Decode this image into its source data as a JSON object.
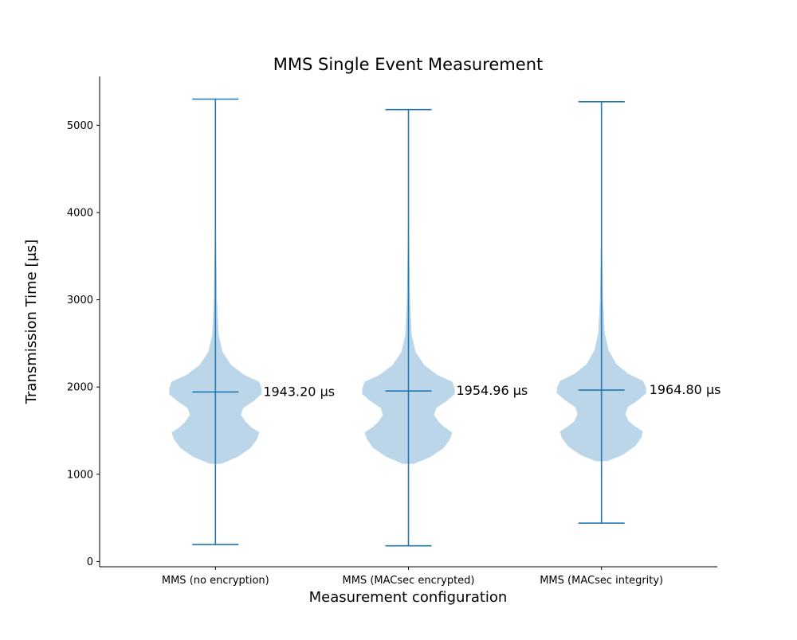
{
  "chart_data": {
    "type": "violin",
    "title": "MMS Single Event Measurement",
    "xlabel": "Measurement configuration",
    "ylabel": "Transmission Time [μs]",
    "ylim": [
      -60,
      5560
    ],
    "yticks": [
      0,
      1000,
      2000,
      3000,
      4000,
      5000
    ],
    "grid": false,
    "legend": "none",
    "color": "#1f77b4",
    "fill_color": "#1f77b4",
    "fill_opacity": 0.3,
    "categories": [
      "MMS (no encryption)",
      "MMS (MACsec encrypted)",
      "MMS (MACsec integrity)"
    ],
    "series": [
      {
        "min": 195,
        "max": 5300,
        "mean": 1943.2,
        "mean_label": "1943.20 μs",
        "density": [
          [
            1120,
            7
          ],
          [
            1200,
            28
          ],
          [
            1300,
            44
          ],
          [
            1400,
            52
          ],
          [
            1480,
            55
          ],
          [
            1540,
            45
          ],
          [
            1600,
            38
          ],
          [
            1680,
            32
          ],
          [
            1760,
            35
          ],
          [
            1840,
            48
          ],
          [
            1920,
            58
          ],
          [
            1980,
            58
          ],
          [
            2060,
            55
          ],
          [
            2140,
            36
          ],
          [
            2250,
            20
          ],
          [
            2400,
            9
          ],
          [
            2600,
            4
          ],
          [
            3000,
            2
          ],
          [
            3600,
            1
          ],
          [
            4300,
            0
          ]
        ]
      },
      {
        "min": 180,
        "max": 5180,
        "mean": 1954.96,
        "mean_label": "1954.96 μs",
        "density": [
          [
            1120,
            7
          ],
          [
            1200,
            28
          ],
          [
            1300,
            44
          ],
          [
            1400,
            52
          ],
          [
            1480,
            55
          ],
          [
            1540,
            45
          ],
          [
            1600,
            38
          ],
          [
            1680,
            32
          ],
          [
            1760,
            35
          ],
          [
            1840,
            48
          ],
          [
            1920,
            58
          ],
          [
            1980,
            58
          ],
          [
            2060,
            55
          ],
          [
            2140,
            36
          ],
          [
            2250,
            20
          ],
          [
            2400,
            9
          ],
          [
            2600,
            4
          ],
          [
            3000,
            2
          ],
          [
            3600,
            1
          ],
          [
            4300,
            0
          ]
        ]
      },
      {
        "min": 440,
        "max": 5270,
        "mean": 1964.8,
        "mean_label": "1964.80 μs",
        "density": [
          [
            1150,
            7
          ],
          [
            1220,
            26
          ],
          [
            1320,
            42
          ],
          [
            1420,
            50
          ],
          [
            1490,
            52
          ],
          [
            1550,
            42
          ],
          [
            1610,
            34
          ],
          [
            1690,
            30
          ],
          [
            1770,
            33
          ],
          [
            1850,
            46
          ],
          [
            1930,
            56
          ],
          [
            1990,
            56
          ],
          [
            2070,
            52
          ],
          [
            2150,
            34
          ],
          [
            2260,
            19
          ],
          [
            2420,
            9
          ],
          [
            2620,
            4
          ],
          [
            3000,
            2
          ],
          [
            3500,
            1
          ],
          [
            4000,
            0
          ]
        ]
      }
    ]
  }
}
